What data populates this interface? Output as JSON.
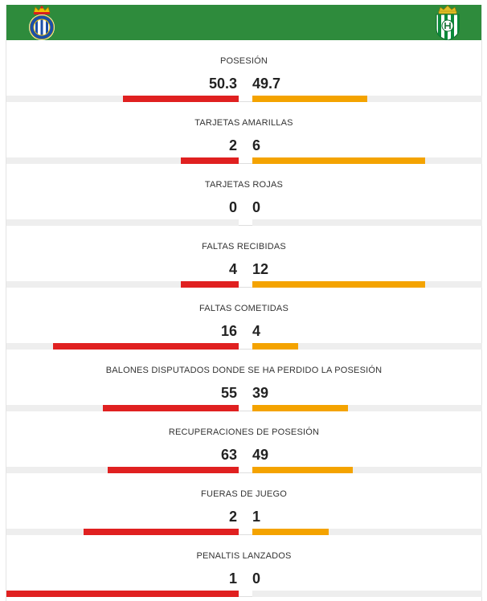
{
  "teams": {
    "home": {
      "name": "RCD Espanyol",
      "crest_icon": "espanyol-crest-icon",
      "color": "#e02020"
    },
    "away": {
      "name": "Real Betis",
      "crest_icon": "betis-crest-icon",
      "color": "#f4a300"
    }
  },
  "colors": {
    "header": "#2e8b3c",
    "track": "#eeeeee"
  },
  "stats": [
    {
      "label": "POSESIÓN",
      "home": "50.3",
      "away": "49.7",
      "home_fill": 0.5,
      "away_fill": 0.5
    },
    {
      "label": "TARJETAS AMARILLAS",
      "home": "2",
      "away": "6",
      "home_fill": 0.25,
      "away_fill": 0.75
    },
    {
      "label": "TARJETAS ROJAS",
      "home": "0",
      "away": "0",
      "home_fill": 0.0,
      "away_fill": 0.0
    },
    {
      "label": "FALTAS RECIBIDAS",
      "home": "4",
      "away": "12",
      "home_fill": 0.25,
      "away_fill": 0.75
    },
    {
      "label": "FALTAS COMETIDAS",
      "home": "16",
      "away": "4",
      "home_fill": 0.8,
      "away_fill": 0.2
    },
    {
      "label": "BALONES DISPUTADOS DONDE SE HA PERDIDO LA POSESIÓN",
      "home": "55",
      "away": "39",
      "home_fill": 0.585,
      "away_fill": 0.415
    },
    {
      "label": "RECUPERACIONES DE POSESIÓN",
      "home": "63",
      "away": "49",
      "home_fill": 0.5625,
      "away_fill": 0.4375
    },
    {
      "label": "FUERAS DE JUEGO",
      "home": "2",
      "away": "1",
      "home_fill": 0.667,
      "away_fill": 0.333
    },
    {
      "label": "PENALTIS LANZADOS",
      "home": "1",
      "away": "0",
      "home_fill": 1.0,
      "away_fill": 0.0
    }
  ]
}
